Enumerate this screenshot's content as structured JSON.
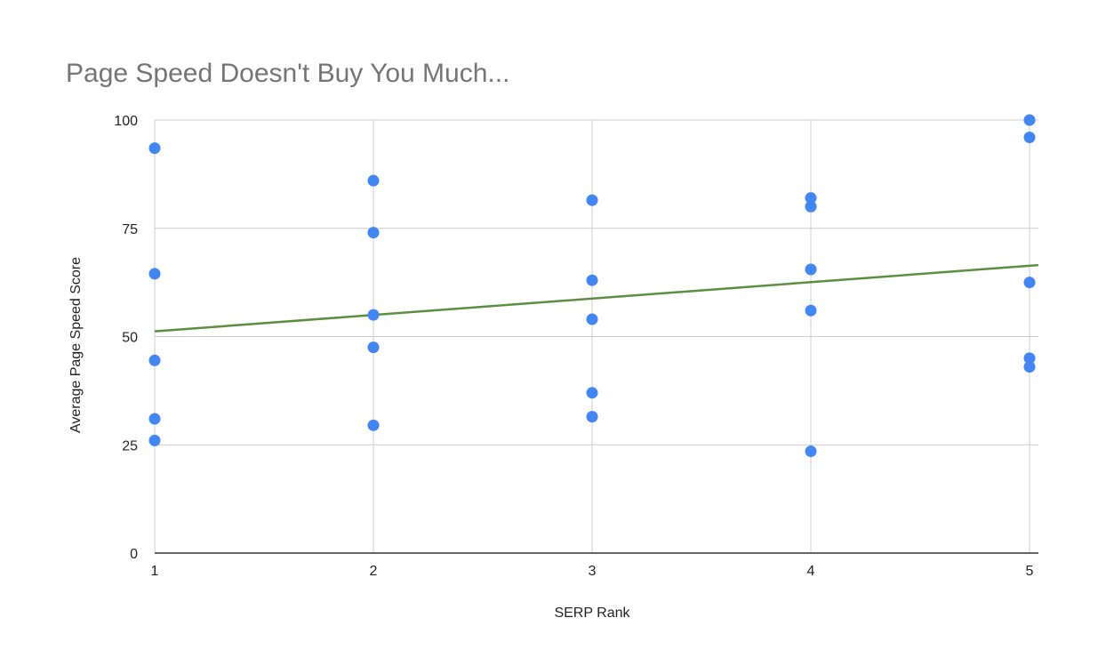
{
  "chart_data": {
    "type": "scatter",
    "title": "Page Speed Doesn't Buy You Much...",
    "xlabel": "SERP Rank",
    "ylabel": "Average Page Speed Score",
    "xlim": [
      1,
      5
    ],
    "ylim": [
      0,
      100
    ],
    "x_ticks": [
      "1",
      "2",
      "3",
      "4",
      "5"
    ],
    "y_ticks": [
      "0",
      "25",
      "50",
      "75",
      "100"
    ],
    "grid": true,
    "legend": "none",
    "colors": {
      "points": "#4285f4",
      "trendline": "#5b8f3e",
      "grid": "#cccccc",
      "axis": "#333333",
      "title": "#757575"
    },
    "series": [
      {
        "points": [
          [
            1,
            93.5
          ],
          [
            1,
            64.5
          ],
          [
            1,
            44.5
          ],
          [
            1,
            31
          ],
          [
            1,
            26
          ],
          [
            2,
            86
          ],
          [
            2,
            74
          ],
          [
            2,
            55
          ],
          [
            2,
            47.5
          ],
          [
            2,
            29.5
          ],
          [
            3,
            81.5
          ],
          [
            3,
            63
          ],
          [
            3,
            54
          ],
          [
            3,
            37
          ],
          [
            3,
            31.5
          ],
          [
            4,
            82
          ],
          [
            4,
            80
          ],
          [
            4,
            65.5
          ],
          [
            4,
            56
          ],
          [
            4,
            23.5
          ],
          [
            5,
            100
          ],
          [
            5,
            96
          ],
          [
            5,
            62.5
          ],
          [
            5,
            45
          ],
          [
            5,
            43
          ]
        ]
      }
    ],
    "trendline": {
      "type": "linear",
      "x": [
        1,
        5.04
      ],
      "y": [
        51.2,
        66.5
      ]
    }
  }
}
